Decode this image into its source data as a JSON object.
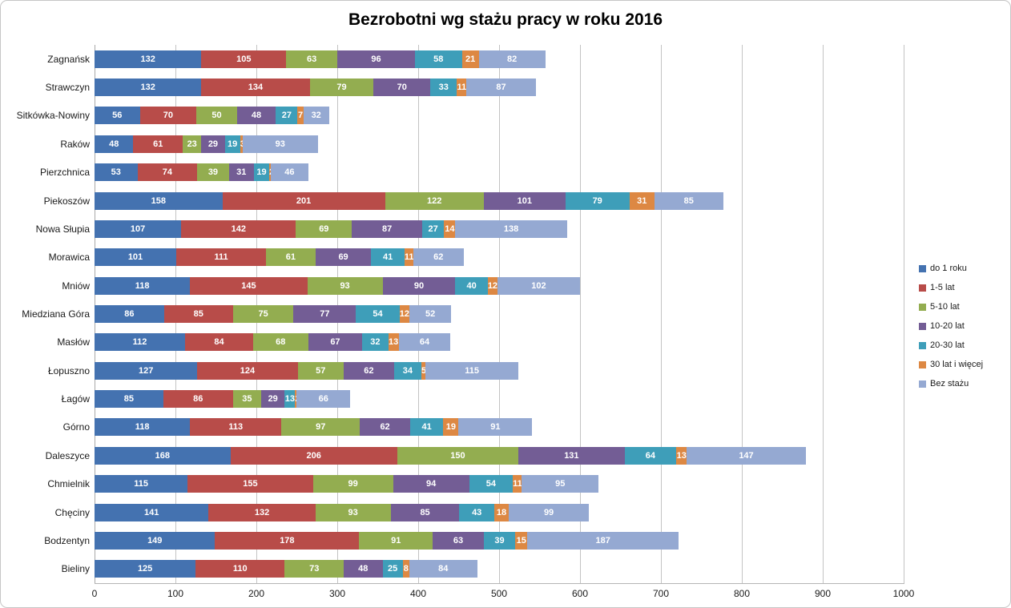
{
  "title": "Bezrobotni wg stażu pracy w roku 2016",
  "chart_data": {
    "type": "bar",
    "orientation": "horizontal-stacked",
    "title": "Bezrobotni wg stażu pracy w roku 2016",
    "xlabel": "",
    "ylabel": "",
    "xlim": [
      0,
      1000
    ],
    "xticks": [
      0,
      100,
      200,
      300,
      400,
      500,
      600,
      700,
      800,
      900,
      1000
    ],
    "grid": true,
    "legend_position": "right",
    "data_labels": "white bold inside segments",
    "categories": [
      "Zagnańsk",
      "Strawczyn",
      "Sitkówka-Nowiny",
      "Raków",
      "Pierzchnica",
      "Piekoszów",
      "Nowa Słupia",
      "Morawica",
      "Mniów",
      "Miedziana Góra",
      "Masłów",
      "Łopuszno",
      "Łagów",
      "Górno",
      "Daleszyce",
      "Chmielnik",
      "Chęciny",
      "Bodzentyn",
      "Bieliny"
    ],
    "series": [
      {
        "name": "do 1 roku",
        "color": "#4472B0",
        "values": [
          132,
          132,
          56,
          48,
          53,
          158,
          107,
          101,
          118,
          86,
          112,
          127,
          85,
          118,
          168,
          115,
          141,
          149,
          125
        ]
      },
      {
        "name": "1-5 lat",
        "color": "#B84C49",
        "values": [
          105,
          134,
          70,
          61,
          74,
          201,
          142,
          111,
          145,
          85,
          84,
          124,
          86,
          113,
          206,
          155,
          132,
          178,
          110
        ]
      },
      {
        "name": "5-10 lat",
        "color": "#93AD50",
        "values": [
          63,
          79,
          50,
          23,
          39,
          122,
          69,
          61,
          93,
          75,
          68,
          57,
          35,
          97,
          150,
          99,
          93,
          91,
          73
        ]
      },
      {
        "name": "10-20 lat",
        "color": "#735D95",
        "values": [
          96,
          70,
          48,
          29,
          31,
          101,
          87,
          69,
          90,
          77,
          67,
          62,
          29,
          62,
          131,
          94,
          85,
          63,
          48
        ]
      },
      {
        "name": "20-30 lat",
        "color": "#3E9EB9",
        "values": [
          58,
          33,
          27,
          19,
          19,
          79,
          27,
          41,
          40,
          54,
          32,
          34,
          13,
          41,
          64,
          54,
          43,
          39,
          25
        ]
      },
      {
        "name": "30 lat i więcej",
        "color": "#DD8843",
        "values": [
          21,
          11,
          7,
          3,
          2,
          31,
          14,
          11,
          12,
          12,
          13,
          5,
          2,
          19,
          13,
          11,
          18,
          15,
          8
        ]
      },
      {
        "name": "Bez stażu",
        "color": "#95A9D2",
        "values": [
          82,
          87,
          32,
          93,
          46,
          85,
          138,
          62,
          102,
          52,
          64,
          115,
          66,
          91,
          147,
          95,
          99,
          187,
          84
        ]
      }
    ],
    "colors_meta": {
      "gridline": "#c3c3c3",
      "axis_line": "#b5b5b5",
      "text": "#1a1a1a",
      "data_label_text": "#ffffff"
    }
  }
}
